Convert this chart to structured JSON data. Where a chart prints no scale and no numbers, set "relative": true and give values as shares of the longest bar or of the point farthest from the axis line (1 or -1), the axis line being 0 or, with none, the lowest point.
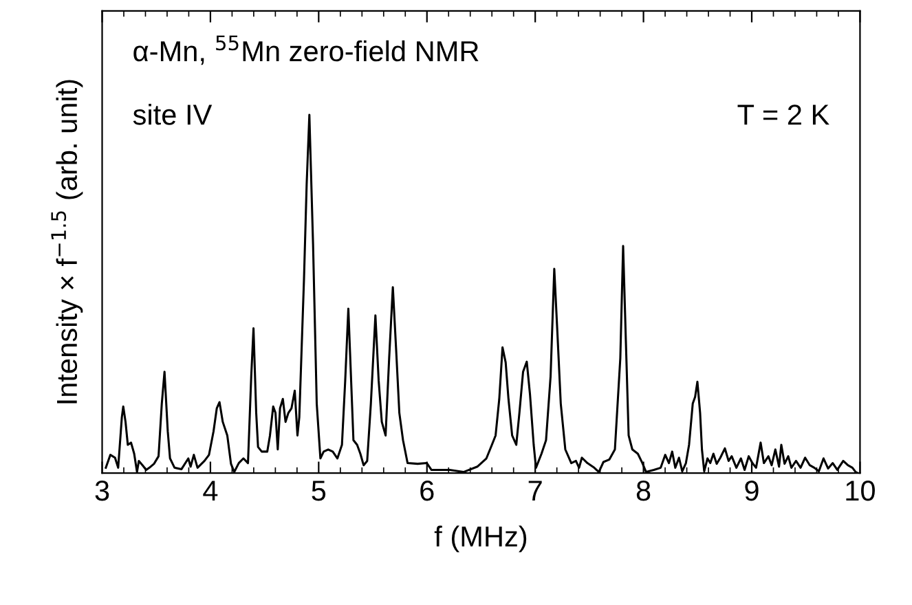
{
  "chart_data": {
    "type": "line",
    "relative": true,
    "xlabel": "f (MHz)",
    "ylabel": "Intensity × f$^{−1.5}$ (arb. unit)",
    "annotations": [
      "α-Mn, $^{55}$Mn zero-field NMR",
      "site IV",
      "T = 2 K"
    ],
    "xlim": [
      3,
      10
    ],
    "xticks": [
      3,
      4,
      5,
      6,
      7,
      8,
      9,
      10
    ],
    "grid": false,
    "legend": false,
    "marker": "none",
    "line_style": "solid",
    "tick_labels": "x",
    "series": [
      {
        "color": "#000000",
        "x": [
          3.034,
          3.076,
          3.119,
          3.148,
          3.182,
          3.195,
          3.216,
          3.237,
          3.267,
          3.296,
          3.322,
          3.339,
          3.373,
          3.407,
          3.436,
          3.479,
          3.521,
          3.551,
          3.576,
          3.606,
          3.627,
          3.669,
          3.733,
          3.796,
          3.817,
          3.847,
          3.881,
          3.945,
          3.987,
          4.029,
          4.059,
          4.084,
          4.114,
          4.156,
          4.19,
          4.22,
          4.262,
          4.305,
          4.347,
          4.377,
          4.398,
          4.423,
          4.44,
          4.474,
          4.525,
          4.55,
          4.58,
          4.601,
          4.622,
          4.643,
          4.669,
          4.694,
          4.72,
          4.749,
          4.779,
          4.804,
          4.821,
          4.864,
          4.889,
          4.914,
          4.948,
          4.982,
          5.016,
          5.046,
          5.088,
          5.13,
          5.173,
          5.215,
          5.245,
          5.274,
          5.321,
          5.355,
          5.385,
          5.415,
          5.448,
          5.482,
          5.524,
          5.554,
          5.583,
          5.618,
          5.651,
          5.685,
          5.715,
          5.745,
          5.779,
          5.821,
          5.914,
          5.999,
          6.041,
          6.21,
          6.338,
          6.465,
          6.549,
          6.6,
          6.634,
          6.668,
          6.698,
          6.727,
          6.753,
          6.787,
          6.825,
          6.854,
          6.888,
          6.922,
          6.952,
          6.986,
          7.007,
          7.058,
          7.1,
          7.142,
          7.176,
          7.206,
          7.236,
          7.278,
          7.333,
          7.376,
          7.405,
          7.431,
          7.482,
          7.545,
          7.588,
          7.63,
          7.685,
          7.736,
          7.786,
          7.812,
          7.837,
          7.863,
          7.897,
          7.948,
          7.99,
          8.024,
          8.096,
          8.159,
          8.201,
          8.235,
          8.265,
          8.294,
          8.328,
          8.358,
          8.392,
          8.421,
          8.455,
          8.477,
          8.498,
          8.523,
          8.54,
          8.561,
          8.591,
          8.617,
          8.646,
          8.676,
          8.71,
          8.752,
          8.786,
          8.815,
          8.858,
          8.9,
          8.934,
          8.972,
          9.006,
          9.04,
          9.082,
          9.112,
          9.154,
          9.184,
          9.218,
          9.252,
          9.273,
          9.303,
          9.337,
          9.366,
          9.409,
          9.451,
          9.493,
          9.536,
          9.578,
          9.62,
          9.663,
          9.705,
          9.748,
          9.79,
          9.845,
          9.888,
          9.93,
          9.96,
          9.981
        ],
        "values": [
          0.015,
          0.051,
          0.043,
          0.015,
          0.156,
          0.186,
          0.143,
          0.079,
          0.085,
          0.054,
          0.003,
          0.034,
          0.022,
          0.009,
          0.015,
          0.026,
          0.047,
          0.194,
          0.283,
          0.117,
          0.041,
          0.015,
          0.011,
          0.041,
          0.018,
          0.051,
          0.015,
          0.034,
          0.051,
          0.117,
          0.181,
          0.198,
          0.143,
          0.105,
          0.026,
          0.003,
          0.028,
          0.041,
          0.028,
          0.27,
          0.404,
          0.168,
          0.073,
          0.06,
          0.06,
          0.105,
          0.186,
          0.168,
          0.066,
          0.181,
          0.207,
          0.143,
          0.168,
          0.181,
          0.23,
          0.105,
          0.156,
          0.538,
          0.806,
          1.0,
          0.64,
          0.194,
          0.041,
          0.06,
          0.066,
          0.06,
          0.041,
          0.079,
          0.258,
          0.459,
          0.092,
          0.079,
          0.054,
          0.022,
          0.034,
          0.194,
          0.44,
          0.258,
          0.143,
          0.105,
          0.321,
          0.519,
          0.347,
          0.168,
          0.092,
          0.028,
          0.026,
          0.028,
          0.009,
          0.009,
          0.003,
          0.018,
          0.041,
          0.079,
          0.105,
          0.207,
          0.351,
          0.309,
          0.207,
          0.105,
          0.079,
          0.168,
          0.283,
          0.311,
          0.219,
          0.079,
          0.015,
          0.054,
          0.092,
          0.27,
          0.57,
          0.385,
          0.194,
          0.066,
          0.028,
          0.034,
          0.015,
          0.043,
          0.028,
          0.015,
          0.003,
          0.031,
          0.038,
          0.066,
          0.321,
          0.634,
          0.372,
          0.105,
          0.066,
          0.054,
          0.028,
          0.003,
          0.009,
          0.015,
          0.051,
          0.028,
          0.06,
          0.015,
          0.043,
          0.005,
          0.028,
          0.079,
          0.194,
          0.213,
          0.255,
          0.168,
          0.066,
          0.005,
          0.041,
          0.028,
          0.054,
          0.026,
          0.043,
          0.069,
          0.034,
          0.047,
          0.015,
          0.041,
          0.009,
          0.047,
          0.028,
          0.015,
          0.085,
          0.028,
          0.047,
          0.022,
          0.066,
          0.018,
          0.079,
          0.026,
          0.047,
          0.015,
          0.034,
          0.015,
          0.043,
          0.022,
          0.015,
          0.005,
          0.041,
          0.013,
          0.028,
          0.009,
          0.034,
          0.022,
          0.015,
          0.003,
          0.0
        ]
      }
    ]
  }
}
